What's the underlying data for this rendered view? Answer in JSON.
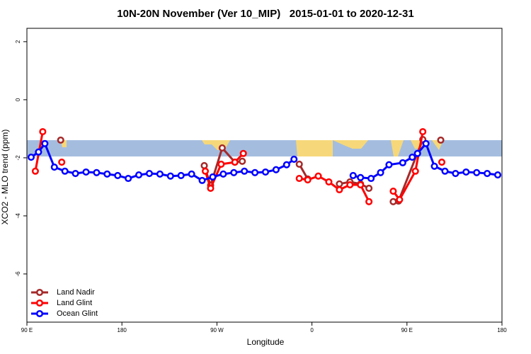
{
  "chart_data": {
    "type": "line",
    "title": "10N-20N November (Ver 10_MIP)   2015-01-01 to 2020-12-31",
    "x_label": "Longitude",
    "y_label": "XCO2 - MLO trend (ppm)",
    "xlim": [
      90,
      540
    ],
    "ylim": [
      -7.66,
      2.46
    ],
    "xticks": [
      {
        "value": 90,
        "label": "90 E"
      },
      180,
      {
        "value": 270,
        "label": "90 W"
      },
      {
        "value": 360,
        "label": "0"
      },
      {
        "value": 450,
        "label": "90 E"
      },
      {
        "value": 540,
        "label": "180"
      }
    ],
    "yticks": [
      -6,
      -4,
      -2,
      0,
      2
    ],
    "legend": "bottom-left",
    "series": [
      {
        "name": "Land Nadir",
        "color": "#a52a2a",
        "x": [
          122,
          null,
          258,
          264,
          275,
          287,
          294,
          null,
          348,
          356,
          null,
          386,
          396,
          406,
          414,
          null,
          437,
          442,
          465,
          null,
          482
        ],
        "values": [
          -1.39,
          null,
          -2.27,
          -2.95,
          -1.66,
          -2.15,
          -2.12,
          null,
          -2.22,
          -2.73,
          null,
          -2.9,
          -2.83,
          -2.9,
          -3.05,
          null,
          -3.51,
          -3.49,
          -1.37,
          null,
          -1.39
        ]
      },
      {
        "name": "Land Glint",
        "color": "#ff0000",
        "x": [
          98,
          105,
          null,
          123,
          null,
          259,
          264,
          274,
          287,
          295,
          null,
          348,
          356,
          366,
          376,
          386,
          396,
          406,
          414,
          null,
          437,
          443,
          458,
          465,
          null,
          483
        ],
        "values": [
          -2.46,
          -1.1,
          null,
          -2.15,
          null,
          -2.46,
          -3.05,
          -2.22,
          -2.15,
          -1.85,
          null,
          -2.71,
          -2.76,
          -2.63,
          -2.83,
          -3.1,
          -2.93,
          -2.93,
          -3.51,
          null,
          -3.15,
          -3.44,
          -2.46,
          -1.1,
          null,
          -2.15
        ]
      },
      {
        "name": "Ocean Glint",
        "color": "#0000ff",
        "x": [
          94,
          101,
          107,
          116,
          126,
          136,
          146,
          156,
          166,
          176,
          186,
          196,
          206,
          216,
          226,
          236,
          246,
          256,
          266,
          276,
          286,
          296,
          306,
          316,
          326,
          336,
          343,
          null,
          399,
          406,
          416,
          425,
          433,
          446,
          455,
          460,
          468,
          476,
          486,
          496,
          506,
          516,
          526,
          536
        ],
        "values": [
          -1.98,
          -1.8,
          -1.51,
          -2.32,
          -2.46,
          -2.54,
          -2.49,
          -2.51,
          -2.56,
          -2.61,
          -2.71,
          -2.59,
          -2.54,
          -2.56,
          -2.63,
          -2.61,
          -2.56,
          -2.78,
          -2.66,
          -2.56,
          -2.51,
          -2.46,
          -2.51,
          -2.49,
          -2.41,
          -2.24,
          -2.05,
          null,
          -2.61,
          -2.68,
          -2.71,
          -2.51,
          -2.24,
          -2.17,
          -1.98,
          -1.85,
          -1.51,
          -2.29,
          -2.46,
          -2.54,
          -2.49,
          -2.51,
          -2.54,
          -2.59
        ]
      }
    ]
  }
}
